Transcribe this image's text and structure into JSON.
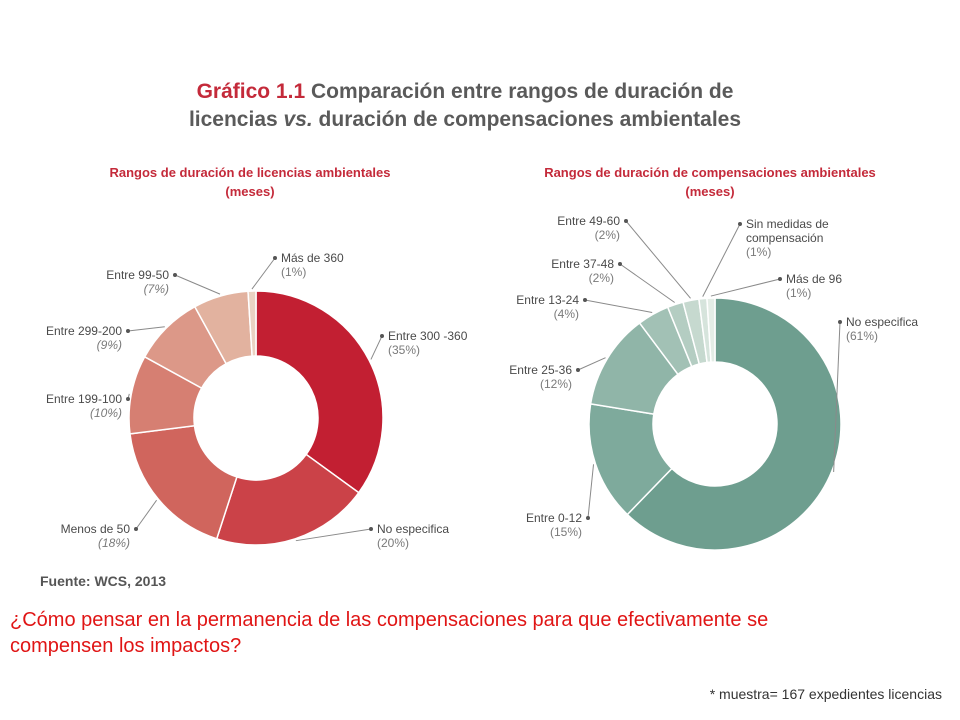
{
  "title": {
    "prefix": "Gráfico 1.1",
    "line1": "Comparación entre rangos de duración de",
    "line2_a": "licencias ",
    "line2_vs": "vs.",
    "line2_b": " duración de compensaciones ambientales"
  },
  "chart_data": [
    {
      "type": "pie",
      "variant": "donut",
      "title": "Rangos de duración de licencias ambientales",
      "subtitle": "(meses)",
      "slices": [
        {
          "label": "Entre 300 -360",
          "pct": "(35%)",
          "value": 35,
          "color": "#c21f32"
        },
        {
          "label": "No especifica",
          "pct": "(20%)",
          "value": 20,
          "color": "#cb4248"
        },
        {
          "label": "Menos de 50",
          "pct": "(18%)",
          "value": 18,
          "color": "#d0655d"
        },
        {
          "label": "Entre 199-100",
          "pct": "(10%)",
          "value": 10,
          "color": "#d67f72"
        },
        {
          "label": "Entre 299-200",
          "pct": "(9%)",
          "value": 9,
          "color": "#dc9888"
        },
        {
          "label": "Entre 99-50",
          "pct": "(7%)",
          "value": 7,
          "color": "#e2b29f"
        },
        {
          "label": "Más de 360",
          "pct": "(1%)",
          "value": 1,
          "color": "#ead2c2"
        }
      ]
    },
    {
      "type": "pie",
      "variant": "donut",
      "title": "Rangos de duración de compensaciones ambientales",
      "subtitle": "(meses)",
      "slices": [
        {
          "label": "No especifica",
          "pct": "(61%)",
          "value": 61,
          "color": "#6e9e8f"
        },
        {
          "label": "Entre 0-12",
          "pct": "(15%)",
          "value": 15,
          "color": "#7eaa9c"
        },
        {
          "label": "Entre 25-36",
          "pct": "(12%)",
          "value": 12,
          "color": "#90b5a8"
        },
        {
          "label": "Entre 13-24",
          "pct": "(4%)",
          "value": 4,
          "color": "#a2c1b5"
        },
        {
          "label": "Entre 37-48",
          "pct": "(2%)",
          "value": 2,
          "color": "#b4cdc2"
        },
        {
          "label": "Entre 49-60",
          "pct": "(2%)",
          "value": 2,
          "color": "#c6d9cf"
        },
        {
          "label": "Sin medidas de compensación",
          "pct": "(1%)",
          "value": 1,
          "color": "#d6e4dc"
        },
        {
          "label": "Más de 96",
          "pct": "(1%)",
          "value": 1,
          "color": "#e4ede6"
        }
      ]
    }
  ],
  "source": "Fuente: WCS, 2013",
  "question": "¿Cómo pensar en la permanencia de las compensaciones para que efectivamente se compensen los impactos?",
  "note": "* muestra= 167 expedientes licencias"
}
